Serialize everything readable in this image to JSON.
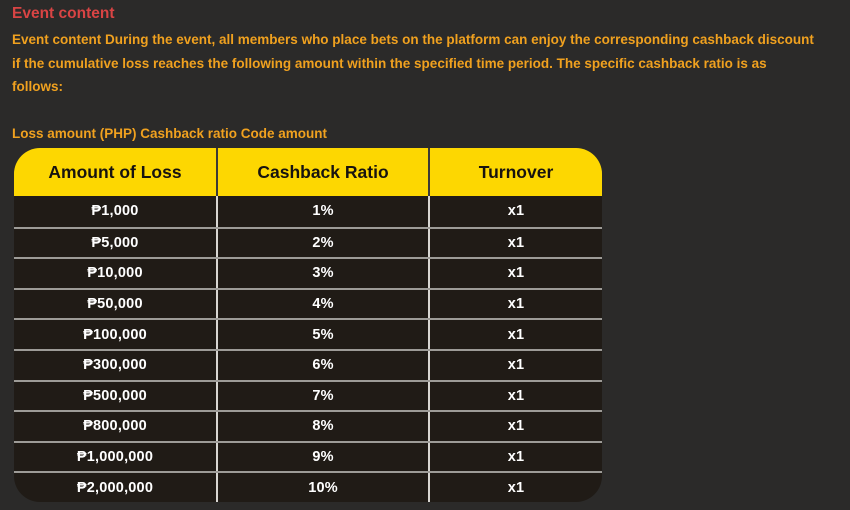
{
  "page": {
    "title": "Event content",
    "description_lines": [
      "Event content During the event, all members who place bets on the platform can enjoy the corresponding cashback discount",
      "if the cumulative loss reaches the following amount within the specified time period. The specific cashback ratio is as",
      "follows:"
    ],
    "table_caption": "Loss amount (PHP) Cashback ratio Code amount"
  },
  "colors": {
    "page_background": "#2b2a29",
    "table_header_yellow": "#fdd701",
    "table_body_dark": "#201b16",
    "title_red": "#d94444",
    "body_text_orange": "#f0a11f",
    "cell_text_white": "#ffffff",
    "header_text_black": "#171310"
  },
  "table": {
    "headers": [
      "Amount of Loss",
      "Cashback Ratio",
      "Turnover"
    ],
    "rows": [
      {
        "loss": "₱1,000",
        "ratio": "1%",
        "turnover": "x1"
      },
      {
        "loss": "₱5,000",
        "ratio": "2%",
        "turnover": "x1"
      },
      {
        "loss": "₱10,000",
        "ratio": "3%",
        "turnover": "x1"
      },
      {
        "loss": "₱50,000",
        "ratio": "4%",
        "turnover": "x1"
      },
      {
        "loss": "₱100,000",
        "ratio": "5%",
        "turnover": "x1"
      },
      {
        "loss": "₱300,000",
        "ratio": "6%",
        "turnover": "x1"
      },
      {
        "loss": "₱500,000",
        "ratio": "7%",
        "turnover": "x1"
      },
      {
        "loss": "₱800,000",
        "ratio": "8%",
        "turnover": "x1"
      },
      {
        "loss": "₱1,000,000",
        "ratio": "9%",
        "turnover": "x1"
      },
      {
        "loss": "₱2,000,000",
        "ratio": "10%",
        "turnover": "x1"
      }
    ]
  }
}
